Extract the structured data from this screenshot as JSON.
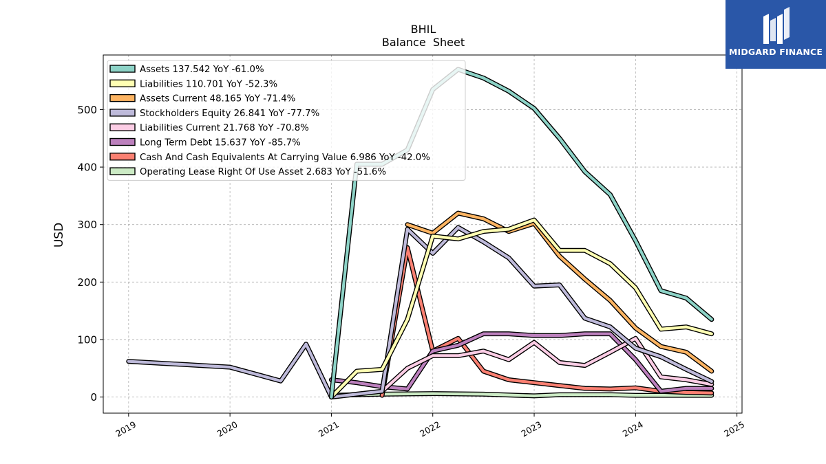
{
  "brand": {
    "name": "MIDGARD FINANCE",
    "bg": "#2a57a8"
  },
  "chart_data": {
    "type": "line",
    "title": "BHIL",
    "subtitle": "Balance  Sheet",
    "ylabel": "USD",
    "xlabel": "",
    "x_ticks": [
      "2019",
      "2020",
      "2021",
      "2022",
      "2023",
      "2024",
      "2025"
    ],
    "y_ticks": [
      "0",
      "100",
      "200",
      "300",
      "400",
      "500"
    ],
    "xlim": [
      2018.75,
      2025.05
    ],
    "ylim": [
      -28,
      595
    ],
    "grid": true,
    "legend_position": "top-left",
    "series": [
      {
        "name": "Assets",
        "legend": "Assets  137.542 YoY -61.0%",
        "color": "#8dd3c7",
        "points": [
          [
            2021.0,
            0
          ],
          [
            2021.25,
            405
          ],
          [
            2021.5,
            405
          ],
          [
            2021.75,
            430
          ],
          [
            2022.0,
            535
          ],
          [
            2022.25,
            570
          ],
          [
            2022.5,
            555
          ],
          [
            2022.75,
            532
          ],
          [
            2023.0,
            502
          ],
          [
            2023.25,
            450
          ],
          [
            2023.5,
            392
          ],
          [
            2023.75,
            352
          ],
          [
            2024.0,
            272
          ],
          [
            2024.25,
            185
          ],
          [
            2024.5,
            172
          ],
          [
            2024.75,
            135
          ]
        ]
      },
      {
        "name": "Liabilities",
        "legend": "Liabilities  110.701 YoY -52.3%",
        "color": "#ffffb3",
        "points": [
          [
            2021.0,
            0
          ],
          [
            2021.25,
            45
          ],
          [
            2021.5,
            48
          ],
          [
            2021.75,
            135
          ],
          [
            2022.0,
            280
          ],
          [
            2022.25,
            275
          ],
          [
            2022.5,
            288
          ],
          [
            2022.75,
            292
          ],
          [
            2023.0,
            308
          ],
          [
            2023.25,
            255
          ],
          [
            2023.5,
            255
          ],
          [
            2023.75,
            232
          ],
          [
            2024.0,
            190
          ],
          [
            2024.25,
            118
          ],
          [
            2024.5,
            122
          ],
          [
            2024.75,
            110
          ]
        ]
      },
      {
        "name": "Assets Current",
        "legend": "Assets Current  48.165 YoY -71.4%",
        "color": "#fdb462",
        "points": [
          [
            2021.75,
            300
          ],
          [
            2022.0,
            285
          ],
          [
            2022.25,
            320
          ],
          [
            2022.5,
            310
          ],
          [
            2022.75,
            288
          ],
          [
            2023.0,
            302
          ],
          [
            2023.25,
            245
          ],
          [
            2023.5,
            205
          ],
          [
            2023.75,
            168
          ],
          [
            2024.0,
            120
          ],
          [
            2024.25,
            88
          ],
          [
            2024.5,
            78
          ],
          [
            2024.75,
            45
          ]
        ]
      },
      {
        "name": "Stockholders Equity",
        "legend": "Stockholders Equity  26.841 YoY -77.7%",
        "color": "#bebada",
        "points": [
          [
            2019.0,
            62
          ],
          [
            2020.0,
            52
          ],
          [
            2020.5,
            28
          ],
          [
            2020.75,
            92
          ],
          [
            2021.0,
            0
          ],
          [
            2021.5,
            10
          ],
          [
            2021.75,
            292
          ],
          [
            2022.0,
            250
          ],
          [
            2022.25,
            295
          ],
          [
            2022.5,
            270
          ],
          [
            2022.75,
            242
          ],
          [
            2023.0,
            193
          ],
          [
            2023.25,
            195
          ],
          [
            2023.5,
            137
          ],
          [
            2023.75,
            122
          ],
          [
            2024.0,
            85
          ],
          [
            2024.25,
            70
          ],
          [
            2024.5,
            48
          ],
          [
            2024.75,
            27
          ]
        ]
      },
      {
        "name": "Liabilities Current",
        "legend": "Liabilities Current  21.768 YoY -70.8%",
        "color": "#fccde5",
        "points": [
          [
            2021.5,
            10
          ],
          [
            2021.75,
            50
          ],
          [
            2022.0,
            72
          ],
          [
            2022.25,
            72
          ],
          [
            2022.5,
            80
          ],
          [
            2022.75,
            65
          ],
          [
            2023.0,
            95
          ],
          [
            2023.25,
            60
          ],
          [
            2023.5,
            55
          ],
          [
            2023.75,
            78
          ],
          [
            2024.0,
            102
          ],
          [
            2024.25,
            35
          ],
          [
            2024.5,
            30
          ],
          [
            2024.75,
            22
          ]
        ]
      },
      {
        "name": "Long Term Debt",
        "legend": "Long Term Debt  15.637 YoY -85.7%",
        "color": "#bc80bd",
        "points": [
          [
            2021.0,
            30
          ],
          [
            2021.25,
            25
          ],
          [
            2021.5,
            18
          ],
          [
            2021.75,
            14
          ],
          [
            2022.0,
            80
          ],
          [
            2022.25,
            90
          ],
          [
            2022.5,
            110
          ],
          [
            2022.75,
            110
          ],
          [
            2023.0,
            107
          ],
          [
            2023.25,
            107
          ],
          [
            2023.5,
            110
          ],
          [
            2023.75,
            110
          ],
          [
            2024.0,
            65
          ],
          [
            2024.25,
            10
          ],
          [
            2024.5,
            15
          ],
          [
            2024.75,
            15
          ]
        ]
      },
      {
        "name": "Cash And Cash Equivalents At Carrying Value",
        "legend": "Cash And Cash Equivalents At Carrying Value  6.986 YoY -42.0%",
        "color": "#fb8072",
        "points": [
          [
            2021.5,
            3
          ],
          [
            2021.75,
            260
          ],
          [
            2022.0,
            80
          ],
          [
            2022.25,
            102
          ],
          [
            2022.5,
            45
          ],
          [
            2022.75,
            30
          ],
          [
            2023.0,
            25
          ],
          [
            2023.25,
            20
          ],
          [
            2023.5,
            15
          ],
          [
            2023.75,
            14
          ],
          [
            2024.0,
            16
          ],
          [
            2024.25,
            10
          ],
          [
            2024.5,
            8
          ],
          [
            2024.75,
            7
          ]
        ]
      },
      {
        "name": "Operating Lease Right Of Use Asset",
        "legend": "Operating Lease Right Of Use Asset  2.683 YoY -51.6%",
        "color": "#ccebc5",
        "points": [
          [
            2021.0,
            3
          ],
          [
            2021.5,
            5
          ],
          [
            2022.0,
            6
          ],
          [
            2022.5,
            5
          ],
          [
            2023.0,
            2
          ],
          [
            2023.25,
            4
          ],
          [
            2023.5,
            4
          ],
          [
            2023.75,
            4
          ],
          [
            2024.0,
            3
          ],
          [
            2024.5,
            3
          ],
          [
            2024.75,
            3
          ]
        ]
      }
    ]
  }
}
